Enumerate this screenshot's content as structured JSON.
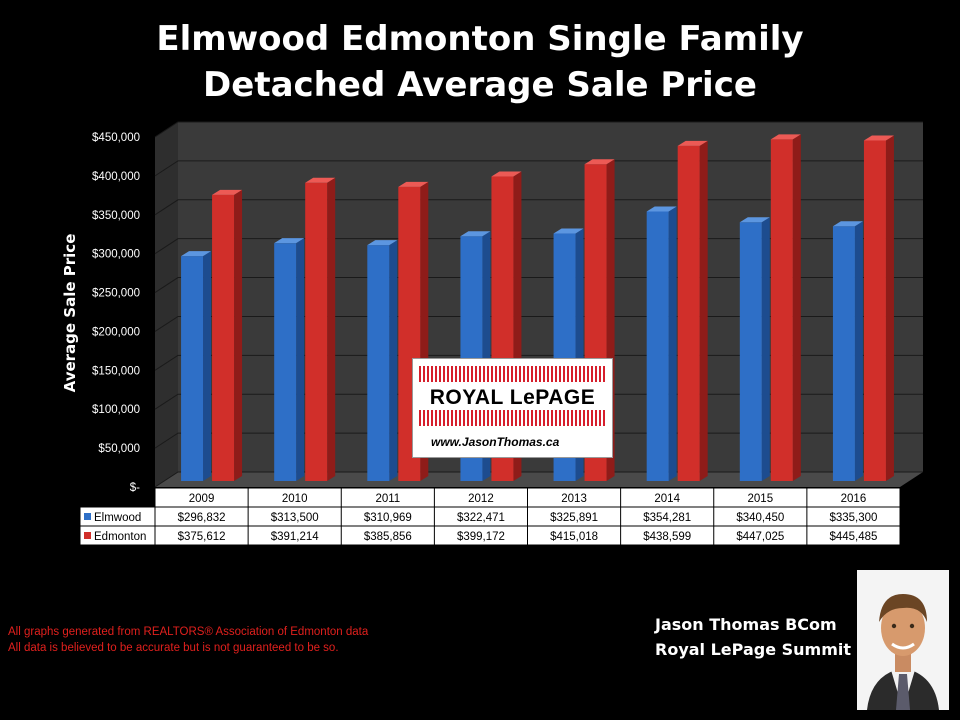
{
  "title_line1": "Elmwood Edmonton Single Family",
  "title_line2": "Detached Average Sale Price",
  "chart_data": {
    "type": "bar",
    "ylabel": "Average Sale Price",
    "ylim": [
      0,
      450000
    ],
    "yticks": [
      0,
      50000,
      100000,
      150000,
      200000,
      250000,
      300000,
      350000,
      400000,
      450000
    ],
    "ytick_labels": [
      "$-",
      "$50,000",
      "$100,000",
      "$150,000",
      "$200,000",
      "$250,000",
      "$300,000",
      "$350,000",
      "$400,000",
      "$450,000"
    ],
    "categories": [
      "2009",
      "2010",
      "2011",
      "2012",
      "2013",
      "2014",
      "2015",
      "2016"
    ],
    "series": [
      {
        "name": "Elmwood",
        "color": "#2e6fc7",
        "values": [
          296832,
          313500,
          310969,
          322471,
          325891,
          354281,
          340450,
          335300
        ],
        "labels": [
          "$296,832",
          "$313,500",
          "$310,969",
          "$322,471",
          "$325,891",
          "$354,281",
          "$340,450",
          "$335,300"
        ]
      },
      {
        "name": "Edmonton",
        "color": "#d12f2a",
        "values": [
          375612,
          391214,
          385856,
          399172,
          415018,
          438599,
          447025,
          445485
        ],
        "labels": [
          "$375,612",
          "$391,214",
          "$385,856",
          "$399,172",
          "$415,018",
          "$438,599",
          "$447,025",
          "$445,485"
        ]
      }
    ],
    "grid": true,
    "legend": "data-table"
  },
  "logo": {
    "brand": "ROYAL LePAGE",
    "url": "www.JasonThomas.ca"
  },
  "disclaimer": {
    "line1": "All graphs generated from REALTORS® Association of Edmonton data",
    "line2": "All data is believed to be accurate but is not guaranteed to be so."
  },
  "agent": {
    "name": "Jason Thomas BCom",
    "company": "Royal LePage Summit"
  }
}
